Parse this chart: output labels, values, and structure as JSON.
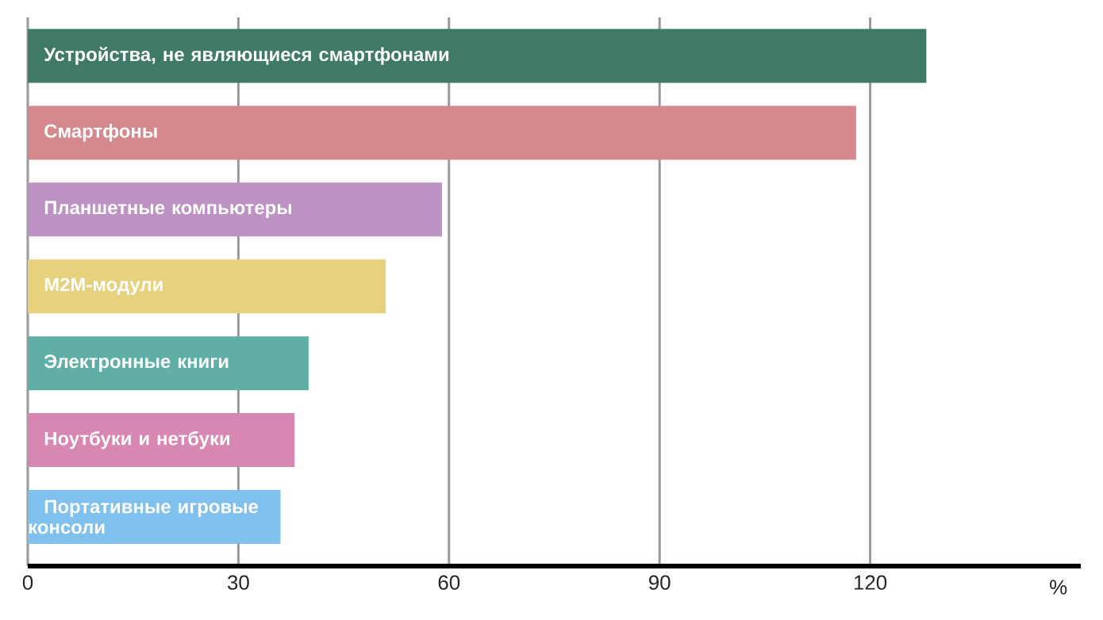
{
  "chart_data": {
    "type": "bar",
    "orientation": "horizontal",
    "categories": [
      "Устройства, не являющиеся смартфонами",
      "Смартфоны",
      "Планшетные компьютеры",
      "М2М-модули",
      "Электронные книги",
      "Ноутбуки и нетбуки",
      "Портативные игровые консоли"
    ],
    "values": [
      128,
      118,
      59,
      51,
      40,
      38,
      36
    ],
    "colors": [
      "#3f7a68",
      "#d5898c",
      "#bc93c2",
      "#e6d27c",
      "#60afa6",
      "#d886b2",
      "#7fc1ec"
    ],
    "xlim": [
      0,
      150
    ],
    "xticks": [
      0,
      30,
      60,
      90,
      120
    ],
    "xlabel": "%",
    "grid": "x"
  }
}
